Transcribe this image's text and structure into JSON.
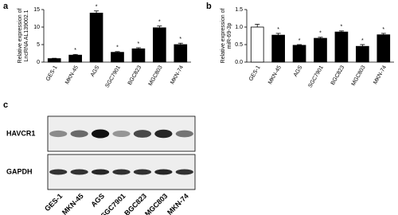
{
  "chart_data": [
    {
      "type": "bar",
      "panel_label": "a",
      "ylabel": [
        "Relative expression of",
        "LncRNA AL139002.1"
      ],
      "categories": [
        "GES-1",
        "MKN-45",
        "AGS",
        "SGC7901",
        "BGC823",
        "MGC803",
        "MKN-74"
      ],
      "values": [
        1,
        2,
        14,
        2.8,
        3.8,
        9.8,
        5
      ],
      "errors": [
        0.1,
        0.2,
        0.6,
        0.2,
        0.3,
        0.5,
        0.4
      ],
      "colors": [
        "#000000",
        "#000000",
        "#000000",
        "#000000",
        "#000000",
        "#000000",
        "#000000"
      ],
      "annotations": [
        null,
        "*",
        "*",
        "*",
        "*",
        "*",
        "*"
      ],
      "ylim": [
        0,
        15
      ],
      "yticks": [
        0,
        5,
        10,
        15
      ]
    },
    {
      "type": "bar",
      "panel_label": "b",
      "ylabel": [
        "Relative expression of",
        "miR-69-3p"
      ],
      "categories": [
        "GES-1",
        "MKN-45",
        "AGS",
        "SGC7901",
        "BGC823",
        "MGC803",
        "MKN-74"
      ],
      "values": [
        1,
        0.77,
        0.48,
        0.68,
        0.86,
        0.45,
        0.78
      ],
      "errors": [
        0.08,
        0.05,
        0.02,
        0.03,
        0.03,
        0.05,
        0.04
      ],
      "colors": [
        "#ffffff",
        "#000000",
        "#000000",
        "#000000",
        "#000000",
        "#000000",
        "#000000"
      ],
      "annotations": [
        null,
        "*",
        "*",
        "*",
        "*",
        "*",
        "*"
      ],
      "ylim": [
        0,
        1.5
      ],
      "yticks": [
        {
          "value": 0,
          "label": "0.0"
        },
        {
          "value": 0.5,
          "label": "0.5"
        },
        {
          "value": 1,
          "label": "1.0"
        },
        {
          "value": 1.5,
          "label": "1.5"
        }
      ]
    }
  ],
  "blot": {
    "panel_label": "c",
    "rows": [
      "HAVCR1",
      "GAPDH"
    ],
    "lanes": [
      "GES-1",
      "MKN-45",
      "AGS",
      "SGC7901",
      "BGC823",
      "MGC803",
      "MKN-74"
    ]
  }
}
